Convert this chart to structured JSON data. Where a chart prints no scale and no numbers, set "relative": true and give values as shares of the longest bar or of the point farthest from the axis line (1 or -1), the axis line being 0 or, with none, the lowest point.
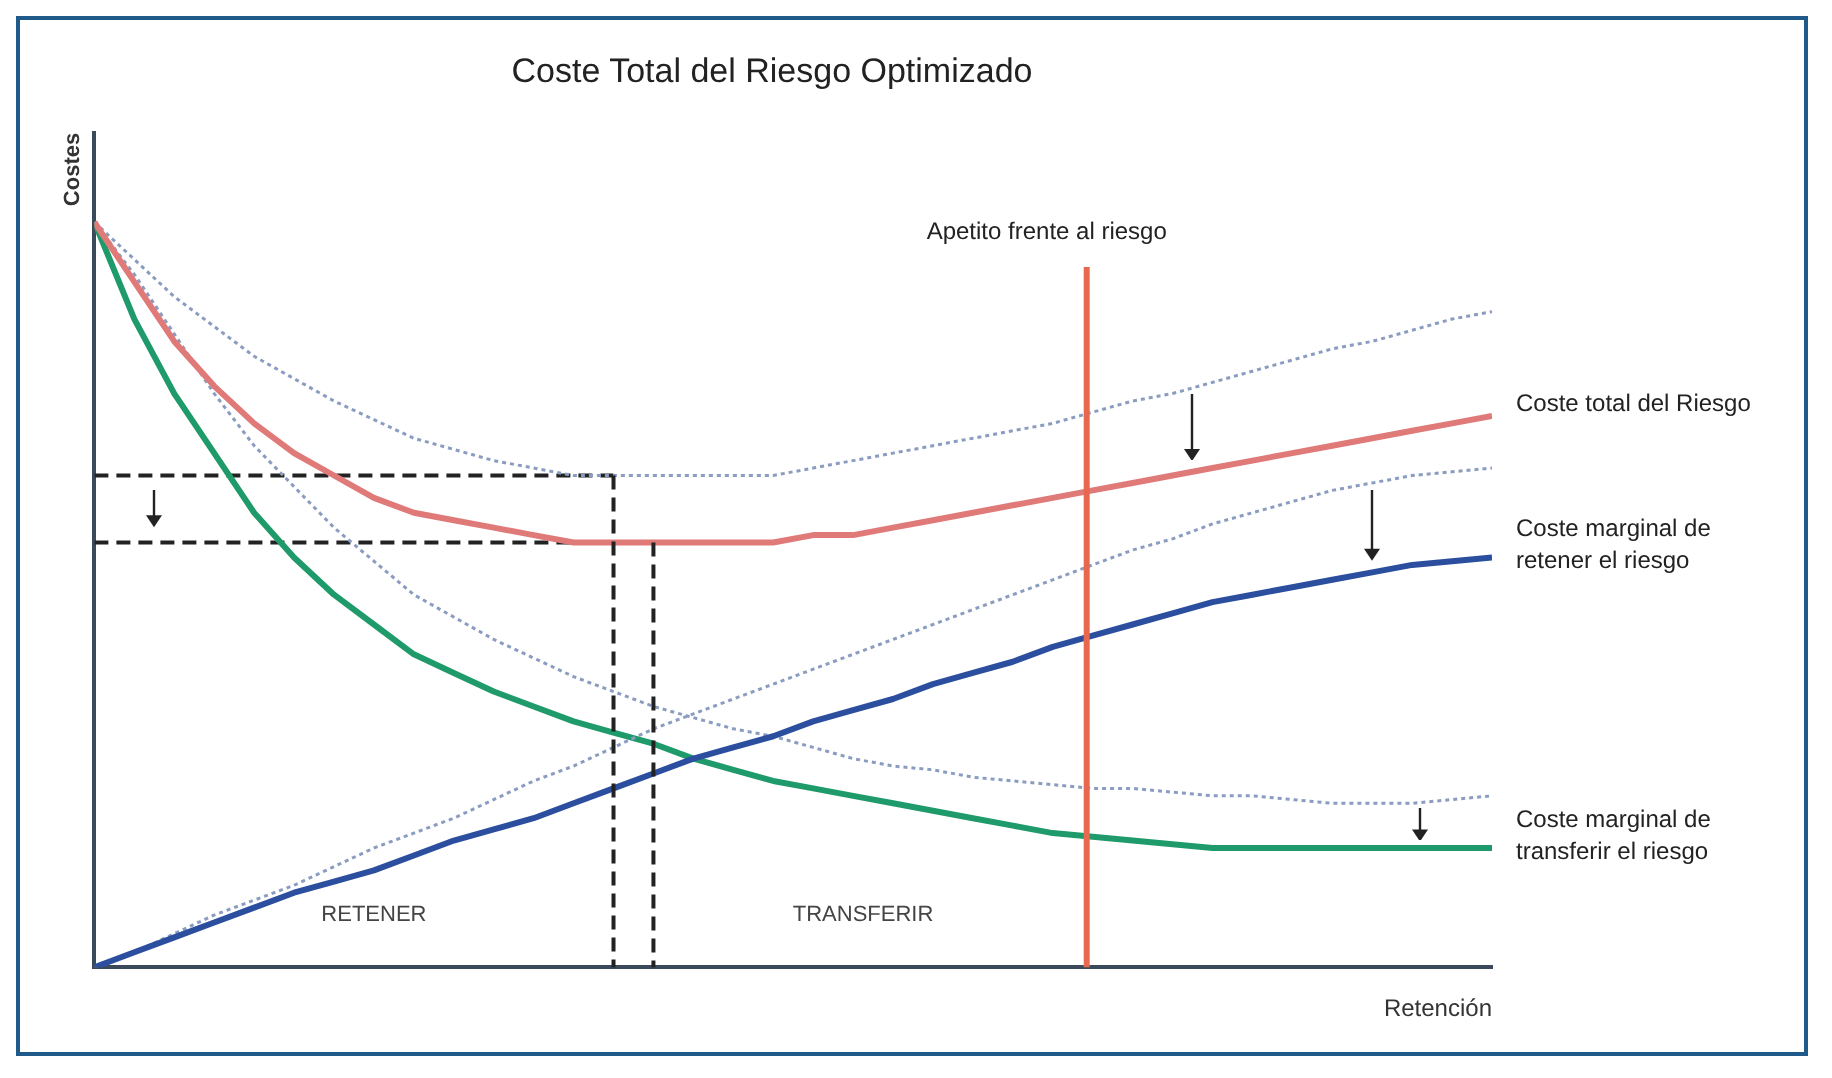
{
  "chart_data": {
    "type": "line",
    "title": "Coste Total del Riesgo Optimizado",
    "xlabel": "Retención",
    "ylabel": "Costes",
    "relative": true,
    "categories": [
      null,
      null,
      null,
      null,
      null,
      null,
      null,
      null,
      null,
      null,
      null,
      null,
      null,
      null,
      null,
      null,
      null,
      null,
      null,
      null,
      null,
      null,
      null,
      null,
      null,
      null,
      null,
      null,
      null,
      null,
      null,
      null,
      null,
      null,
      null,
      null
    ],
    "series": [
      {
        "name": "Coste total del Riesgo",
        "color": "#e07a78",
        "line_style": "solid",
        "values": [
          1,
          0.92,
          0.84,
          0.78,
          0.73,
          0.69,
          0.66,
          0.63,
          0.61,
          0.6,
          0.59,
          0.58,
          0.57,
          0.57,
          0.57,
          0.57,
          0.57,
          0.57,
          0.58,
          0.58,
          0.59,
          0.6,
          0.61,
          0.62,
          0.63,
          0.64,
          0.65,
          0.66,
          0.67,
          0.68,
          0.69,
          0.7,
          0.71,
          0.72,
          0.73,
          0.74
        ]
      },
      {
        "color": "#8a9cc0",
        "line_style": "dotted",
        "values": [
          1,
          0.95,
          0.9,
          0.86,
          0.82,
          0.79,
          0.76,
          0.735,
          0.71,
          0.695,
          0.68,
          0.67,
          0.66,
          0.66,
          0.66,
          0.66,
          0.66,
          0.66,
          0.67,
          0.68,
          0.69,
          0.7,
          0.71,
          0.72,
          0.73,
          0.745,
          0.76,
          0.77,
          0.785,
          0.8,
          0.815,
          0.83,
          0.84,
          0.855,
          0.87,
          0.88
        ]
      },
      {
        "name": "Coste marginal de retener el riesgo",
        "color": "#2b4f9e",
        "line_style": "solid",
        "values": [
          0,
          0.02,
          0.04,
          0.06,
          0.08,
          0.1,
          0.115,
          0.13,
          0.15,
          0.17,
          0.185,
          0.2,
          0.22,
          0.24,
          0.26,
          0.28,
          0.295,
          0.31,
          0.33,
          0.345,
          0.36,
          0.38,
          0.395,
          0.41,
          0.43,
          0.445,
          0.46,
          0.475,
          0.49,
          0.5,
          0.51,
          0.52,
          0.53,
          0.54,
          0.545,
          0.55
        ]
      },
      {
        "color": "#8a9cc0",
        "line_style": "dotted",
        "values": [
          0,
          0.02,
          0.045,
          0.07,
          0.09,
          0.11,
          0.135,
          0.16,
          0.18,
          0.2,
          0.225,
          0.25,
          0.27,
          0.295,
          0.32,
          0.34,
          0.36,
          0.38,
          0.4,
          0.42,
          0.44,
          0.46,
          0.48,
          0.5,
          0.52,
          0.54,
          0.56,
          0.575,
          0.595,
          0.61,
          0.625,
          0.64,
          0.65,
          0.66,
          0.665,
          0.67
        ]
      },
      {
        "name": "Coste marginal de transferir el riesgo",
        "color": "#1f9a6a",
        "line_style": "solid",
        "values": [
          1,
          0.87,
          0.77,
          0.69,
          0.61,
          0.55,
          0.5,
          0.46,
          0.42,
          0.395,
          0.37,
          0.35,
          0.33,
          0.315,
          0.3,
          0.28,
          0.265,
          0.25,
          0.24,
          0.23,
          0.22,
          0.21,
          0.2,
          0.19,
          0.18,
          0.175,
          0.17,
          0.165,
          0.16,
          0.16,
          0.16,
          0.16,
          0.16,
          0.16,
          0.16,
          0.16
        ]
      },
      {
        "color": "#8a9cc0",
        "line_style": "dotted",
        "values": [
          1,
          0.93,
          0.85,
          0.77,
          0.7,
          0.645,
          0.59,
          0.545,
          0.5,
          0.47,
          0.44,
          0.415,
          0.39,
          0.37,
          0.35,
          0.335,
          0.32,
          0.31,
          0.295,
          0.28,
          0.27,
          0.265,
          0.255,
          0.25,
          0.245,
          0.24,
          0.24,
          0.235,
          0.23,
          0.23,
          0.225,
          0.22,
          0.22,
          0.22,
          0.225,
          0.23
        ]
      },
      {
        "color": "#222222",
        "line_style": "dashed",
        "values": [
          0.66,
          0.66,
          0.66,
          0.66,
          0.66,
          0.66,
          0.66,
          0.66,
          0.66,
          0.66,
          0.66,
          0.66,
          0.66,
          0.66,
          null,
          null,
          null,
          null,
          null,
          null,
          null,
          null,
          null,
          null,
          null,
          null,
          null,
          null,
          null,
          null,
          null,
          null,
          null,
          null,
          null,
          null
        ]
      },
      {
        "color": "#222222",
        "line_style": "dashed",
        "values": [
          0.57,
          0.57,
          0.57,
          0.57,
          0.57,
          0.57,
          0.57,
          0.57,
          0.57,
          0.57,
          0.57,
          0.57,
          0.57,
          0.57,
          0.57,
          null,
          null,
          null,
          null,
          null,
          null,
          null,
          null,
          null,
          null,
          null,
          null,
          null,
          null,
          null,
          null,
          null,
          null,
          null,
          null,
          null
        ]
      }
    ],
    "ref_lines": [
      {
        "axis": "x",
        "label": "Apetito frente al riesgo",
        "color": "#e8684f"
      }
    ],
    "annotations": [
      "RETENER",
      "TRANSFERIR"
    ]
  }
}
